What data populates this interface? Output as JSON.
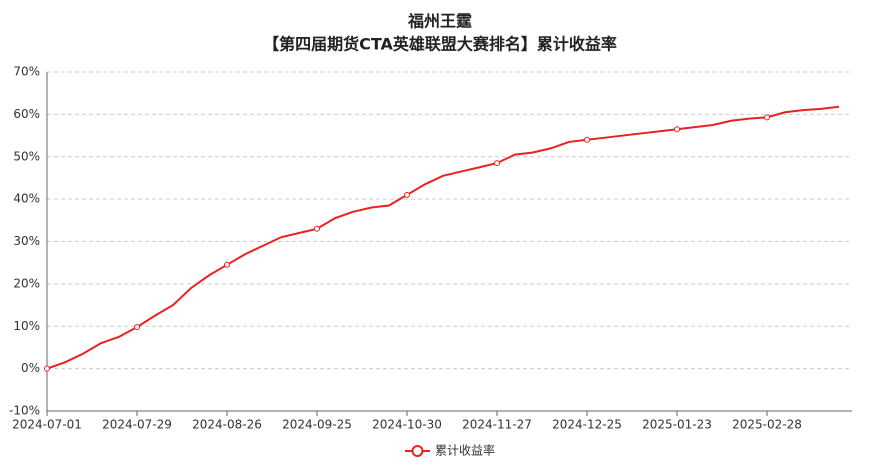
{
  "chart_data": {
    "type": "line",
    "title": "福州王霆",
    "subtitle": "【第四届期货CTA英雄联盟大赛排名】累计收益率",
    "categories": [
      "2024-07-01",
      null,
      null,
      null,
      null,
      "2024-07-29",
      null,
      null,
      null,
      null,
      "2024-08-26",
      null,
      null,
      null,
      null,
      "2024-09-25",
      null,
      null,
      null,
      null,
      "2024-10-30",
      null,
      null,
      null,
      null,
      "2024-11-27",
      null,
      null,
      null,
      null,
      "2024-12-25",
      null,
      null,
      null,
      null,
      "2025-01-23",
      null,
      null,
      null,
      null,
      "2025-02-28",
      null,
      null,
      null,
      null
    ],
    "series": [
      {
        "name": "累计收益率",
        "color": "#e8231f",
        "values": [
          0,
          1.5,
          3.5,
          6,
          7.5,
          9.8,
          12.5,
          15,
          19,
          22,
          24.5,
          27,
          29,
          31,
          32,
          33,
          35.5,
          37,
          38,
          38.5,
          41,
          43.5,
          45.5,
          46.5,
          47.5,
          48.5,
          50.5,
          51,
          52,
          53.5,
          54,
          54.5,
          55,
          55.5,
          56,
          56.5,
          57,
          57.5,
          58.5,
          59,
          59.3,
          60.5,
          61,
          61.3,
          61.8
        ]
      }
    ],
    "ylim": [
      -10,
      70
    ],
    "yticks": [
      {
        "value": -10,
        "label": "-10%"
      },
      {
        "value": 0,
        "label": "0%"
      },
      {
        "value": 10,
        "label": "10%"
      },
      {
        "value": 20,
        "label": "20%"
      },
      {
        "value": 30,
        "label": "30%"
      },
      {
        "value": 40,
        "label": "40%"
      },
      {
        "value": 50,
        "label": "50%"
      },
      {
        "value": 60,
        "label": "60%"
      },
      {
        "value": 70,
        "label": "70%"
      }
    ],
    "grid": true,
    "legend": "bottom"
  }
}
